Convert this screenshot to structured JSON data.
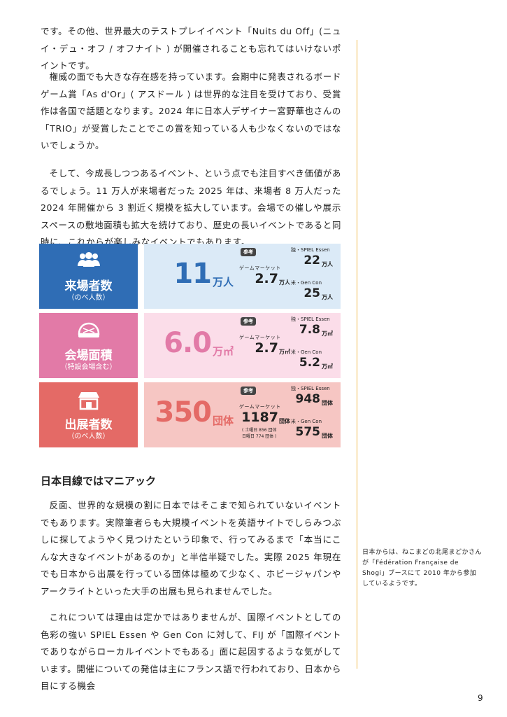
{
  "body": {
    "paragraphs": [
      "です。その他、世界最大のテストプレイイベント「Nuits du Off」(ニュイ・デュ・オフ / オフナイト ) が開催されることも忘れてはいけないポイントです。",
      "権威の面でも大きな存在感を持っています。会期中に発表されるボードゲーム賞「As d'Or」( アスドール ) は世界的な注目を受けており、受賞作は各国で話題となります。2024 年に日本人デザイナー宮野華也さんの「TRIO」が受賞したことでこの賞を知っている人も少なくないのではないでしょうか。",
      "そして、今成長しつつあるイベント、という点でも注目すべき価値があるでしょう。11 万人が来場者だった 2025 年は、来場者 8 万人だった 2024 年開催から 3 割近く規模を拡大しています。会場での催しや展示スペースの敷地面積も拡大を続けており、歴史の長いイベントであると同時に、これからが楽しみなイベントでもあります。"
    ]
  },
  "stats": [
    {
      "label": "来場者数",
      "sub": "（のべ人数）",
      "value": "11",
      "unit": "万人",
      "badge": "参考",
      "ref": [
        {
          "name": "ゲームマーケット",
          "value": "2.7",
          "unit": "万人"
        },
        {
          "name": "独・SPIEL Essen",
          "value": "22",
          "unit": "万人"
        },
        {
          "name": "米・Gen Con",
          "value": "25",
          "unit": "万人"
        }
      ]
    },
    {
      "label": "会場面積",
      "sub": "（特設会場含む）",
      "value": "6.0",
      "unit": "万㎡",
      "badge": "参考",
      "ref": [
        {
          "name": "ゲームマーケット",
          "value": "2.7",
          "unit": "万㎡"
        },
        {
          "name": "独・SPIEL Essen",
          "value": "7.8",
          "unit": "万㎡"
        },
        {
          "name": "米・Gen Con",
          "value": "5.2",
          "unit": "万㎡"
        }
      ]
    },
    {
      "label": "出展者数",
      "sub": "（のべ人数）",
      "value": "350",
      "unit": "団体",
      "badge": "参考",
      "ref": [
        {
          "name": "ゲームマーケット",
          "value": "1187",
          "unit": "団体",
          "note": [
            "( 土曜日 856 団体",
            "日曜日 774 団体 )"
          ]
        },
        {
          "name": "独・SPIEL Essen",
          "value": "948",
          "unit": "団体"
        },
        {
          "name": "米・Gen Con",
          "value": "575",
          "unit": "団体"
        }
      ]
    }
  ],
  "section": {
    "heading": "日本目線ではマニアック",
    "paragraphs": [
      "反面、世界的な規模の割に日本ではそこまで知られていないイベントでもあります。実際筆者らも大規模イベントを英語サイトでしらみつぶしに探してようやく見つけたという印象で、行ってみるまで「本当にこんな大きなイベントがあるのか」と半信半疑でした。実際 2025 年現在でも日本から出展を行っている団体は極めて少なく、ホビージャパンやアークライトといった大手の出展も見られませんでした。",
      "これについては理由は定かではありませんが、国際イベントとしての色彩の強い SPIEL Essen や Gen Con に対して、FIJ が「国際イベントでありながらローカルイベントでもある」面に起因するような気がしています。開催についての発信は主にフランス語で行われており、日本から目にする機会"
    ]
  },
  "sidenote": "日本からは、ねこまどの北尾まどかさんが「Fédération Française de Shogi」ブースにて 2010 年から参加しているようです。",
  "page_number": "9"
}
